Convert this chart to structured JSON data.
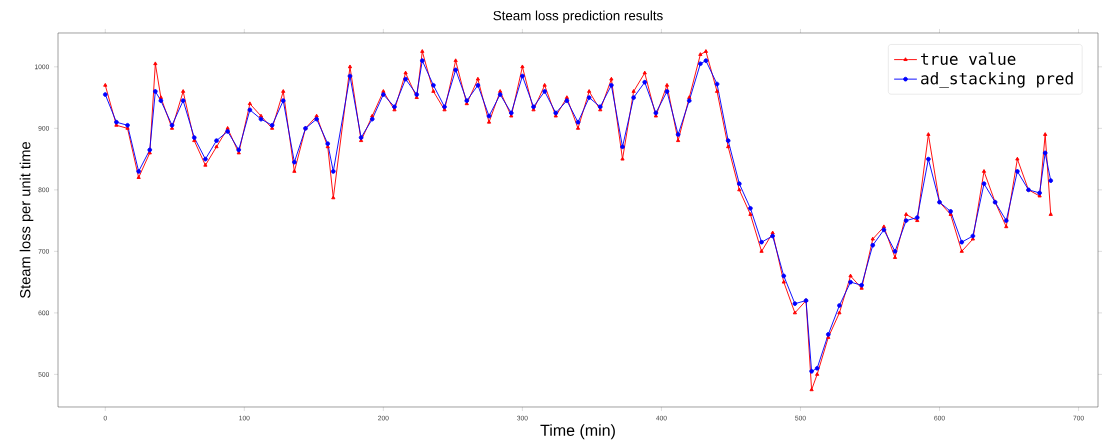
{
  "chart_data": {
    "type": "line",
    "title": "Steam loss prediction results",
    "xlabel": "Time (min)",
    "ylabel": "Steam loss per unit time",
    "x": [
      0,
      8,
      16,
      24,
      32,
      36,
      40,
      48,
      56,
      64,
      72,
      80,
      88,
      96,
      104,
      112,
      120,
      128,
      136,
      144,
      152,
      160,
      164,
      176,
      184,
      192,
      200,
      208,
      216,
      224,
      228,
      236,
      244,
      252,
      260,
      268,
      276,
      284,
      292,
      300,
      308,
      316,
      324,
      332,
      340,
      348,
      356,
      364,
      372,
      380,
      388,
      396,
      404,
      412,
      420,
      428,
      432,
      440,
      448,
      456,
      464,
      472,
      480,
      488,
      496,
      504,
      508,
      512,
      520,
      528,
      536,
      544,
      552,
      560,
      568,
      576,
      584,
      592,
      600,
      608,
      616,
      624,
      632,
      640,
      648,
      656,
      664,
      672,
      676,
      680
    ],
    "series": [
      {
        "name": "true value",
        "color": "#ff0000",
        "marker": "triangle",
        "values": [
          970,
          905,
          900,
          820,
          860,
          1005,
          950,
          900,
          960,
          880,
          840,
          870,
          900,
          860,
          940,
          920,
          900,
          960,
          830,
          900,
          920,
          870,
          787,
          1000,
          880,
          920,
          960,
          930,
          990,
          950,
          1025,
          960,
          930,
          1010,
          940,
          980,
          910,
          960,
          920,
          1000,
          930,
          970,
          920,
          950,
          900,
          960,
          930,
          980,
          850,
          960,
          990,
          920,
          970,
          880,
          950,
          1020,
          1025,
          960,
          870,
          800,
          760,
          700,
          730,
          650,
          600,
          620,
          475,
          500,
          560,
          600,
          660,
          640,
          720,
          740,
          690,
          760,
          750,
          890,
          780,
          760,
          700,
          720,
          830,
          780,
          740,
          850,
          800,
          790,
          890,
          760
        ]
      },
      {
        "name": "ad_stacking pred",
        "color": "#0000ff",
        "marker": "circle",
        "values": [
          955,
          910,
          905,
          830,
          865,
          960,
          945,
          905,
          945,
          885,
          850,
          880,
          895,
          865,
          930,
          915,
          905,
          945,
          845,
          900,
          915,
          875,
          830,
          985,
          885,
          915,
          955,
          935,
          980,
          955,
          1010,
          970,
          935,
          995,
          945,
          970,
          920,
          955,
          925,
          985,
          935,
          960,
          925,
          945,
          910,
          950,
          935,
          970,
          870,
          950,
          975,
          925,
          960,
          890,
          945,
          1005,
          1010,
          972,
          880,
          810,
          770,
          715,
          725,
          660,
          615,
          620,
          505,
          510,
          565,
          612,
          650,
          645,
          710,
          735,
          700,
          750,
          755,
          850,
          780,
          765,
          715,
          725,
          810,
          780,
          750,
          830,
          800,
          795,
          860,
          815
        ]
      }
    ],
    "xlim": [
      -34,
      714
    ],
    "ylim": [
      447,
      1055
    ],
    "xticks": [
      0,
      100,
      200,
      300,
      400,
      500,
      600,
      700
    ],
    "yticks": [
      500,
      600,
      700,
      800,
      900,
      1000
    ],
    "grid": false,
    "legend": "top right",
    "line_style": "solid"
  }
}
